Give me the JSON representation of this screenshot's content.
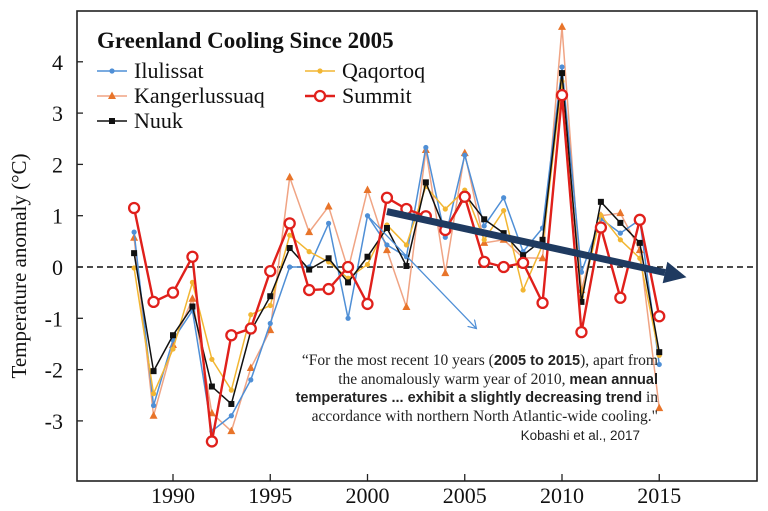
{
  "chart_data": {
    "type": "line",
    "title": "Greenland Cooling Since 2005",
    "xlabel": "",
    "ylabel": "Temperature anomaly (°C)",
    "xlim": [
      1984,
      2020
    ],
    "ylim": [
      -4.1,
      5.2
    ],
    "x_ticks": [
      1990,
      1995,
      2000,
      2005,
      2010,
      2015
    ],
    "y_ticks": [
      4,
      3,
      2,
      1,
      0,
      -1,
      -2,
      -3
    ],
    "grid": false,
    "zero_line": "dashed",
    "legend_position": "top-left",
    "x": [
      1988,
      1989,
      1990,
      1991,
      1992,
      1993,
      1994,
      1995,
      1996,
      1997,
      1998,
      1999,
      2000,
      2001,
      2002,
      2003,
      2004,
      2005,
      2006,
      2007,
      2008,
      2009,
      2010,
      2011,
      2012,
      2013,
      2014,
      2015
    ],
    "series": [
      {
        "name": "Ilulissat",
        "color": "#4f8fd6",
        "marker": "dot",
        "values": [
          0.68,
          -2.7,
          -1.42,
          -0.85,
          -3.2,
          -2.9,
          -2.2,
          -1.1,
          0.0,
          0.0,
          0.85,
          -1.0,
          1.0,
          0.43,
          0.2,
          2.33,
          0.58,
          2.18,
          0.8,
          1.35,
          0.3,
          0.76,
          3.9,
          -0.1,
          0.94,
          0.66,
          0.92,
          -1.9
        ]
      },
      {
        "name": "Kangerlussuaq",
        "color": "#f0a484",
        "marker_color": "#e8742a",
        "marker": "triangle",
        "values": [
          0.57,
          -2.9,
          -1.52,
          -0.62,
          -2.85,
          -3.2,
          -1.97,
          -1.23,
          1.75,
          0.68,
          1.18,
          -0.05,
          1.5,
          0.33,
          -0.78,
          2.28,
          -0.12,
          2.22,
          0.47,
          0.53,
          0.18,
          0.17,
          4.68,
          -0.45,
          1.0,
          1.05,
          0.33,
          -2.75
        ]
      },
      {
        "name": "Nuuk",
        "color": "#111111",
        "marker": "square",
        "values": [
          0.27,
          -2.03,
          -1.33,
          -0.77,
          -2.33,
          -2.67,
          -1.25,
          -0.57,
          0.37,
          -0.05,
          0.17,
          -0.3,
          0.2,
          0.76,
          0.02,
          1.65,
          0.7,
          1.42,
          0.93,
          0.66,
          0.23,
          0.53,
          3.78,
          -0.68,
          1.27,
          0.86,
          0.47,
          -1.66
        ]
      },
      {
        "name": "Qaqortoq",
        "color": "#f2b632",
        "marker": "dot",
        "values": [
          -0.02,
          -2.47,
          -1.6,
          -0.3,
          -1.8,
          -2.4,
          -0.93,
          -0.75,
          0.62,
          0.3,
          0.1,
          -0.22,
          0.05,
          0.82,
          0.43,
          1.57,
          1.13,
          1.5,
          0.53,
          1.1,
          -0.45,
          0.43,
          3.62,
          -0.58,
          1.01,
          0.53,
          0.17,
          -1.72
        ]
      },
      {
        "name": "Summit",
        "color": "#e0201b",
        "marker": "open-circle",
        "values": [
          1.15,
          -0.68,
          -0.5,
          0.2,
          -3.4,
          -1.33,
          -1.2,
          -0.08,
          0.85,
          -0.45,
          -0.43,
          0.0,
          -0.72,
          1.35,
          1.13,
          0.99,
          0.72,
          1.37,
          0.1,
          0.0,
          0.08,
          -0.7,
          3.35,
          -1.27,
          0.77,
          -0.6,
          0.92,
          -0.96
        ]
      }
    ],
    "annotations": {
      "trend_arrow": {
        "color": "#1f3a60",
        "from": [
          2001.0,
          1.08
        ],
        "to": [
          2016.4,
          -0.2
        ]
      },
      "pointer_arrow": {
        "color": "#4f8fd6",
        "from": [
          2000.0,
          1.0
        ],
        "to": [
          2005.6,
          -1.2
        ]
      },
      "quote_lines": [
        [
          {
            "t": "“For the most recent 10 years (",
            "b": false
          },
          {
            "t": "2005 to 2015",
            "b": true
          },
          {
            "t": "), apart from",
            "b": false
          }
        ],
        [
          {
            "t": "the anomalously warm year of 2010, ",
            "b": false
          },
          {
            "t": "mean annual",
            "b": true
          }
        ],
        [
          {
            "t": "temperatures ... exhibit a slightly decreasing trend",
            "b": true
          },
          {
            "t": " in",
            "b": false
          }
        ],
        [
          {
            "t": "accordance with northern North Atlantic-wide cooling.\"",
            "b": false
          }
        ]
      ],
      "citation": "Kobashi et al., 2017"
    }
  }
}
